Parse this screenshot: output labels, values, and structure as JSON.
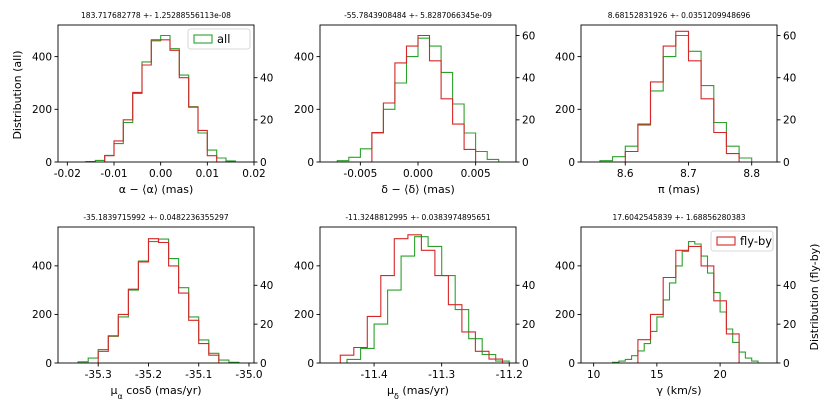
{
  "colors": {
    "all": "#2ca02c",
    "flyby": "#d62728",
    "axes": "#000000"
  },
  "ylabel_left": "Distribution (all)",
  "ylabel_right": "Distribution (fly-by)",
  "chart_data": [
    {
      "type": "histogram",
      "title": "183.717682778 +- 1.25288556113e-08",
      "xlabel": "α − ⟨α⟩ (mas)",
      "xlim": [
        -0.022,
        0.02
      ],
      "xticks": [
        "-0.02",
        "-0.01",
        "0.00",
        "0.01",
        "0.02"
      ],
      "xtick_values": [
        -0.02,
        -0.01,
        0.0,
        0.01,
        0.02
      ],
      "ylim_left": [
        0,
        520
      ],
      "yticks_left": [
        0,
        200,
        400
      ],
      "ylim_right": [
        0,
        65
      ],
      "yticks_right": [
        0,
        20,
        40
      ],
      "legend": {
        "label": "all",
        "position": "upper right",
        "series": "all"
      },
      "series": [
        {
          "name": "all",
          "axis": "left",
          "edges": [
            -0.016,
            -0.014,
            -0.012,
            -0.01,
            -0.008,
            -0.006,
            -0.004,
            -0.002,
            0.0,
            0.002,
            0.004,
            0.006,
            0.008,
            0.01,
            0.012,
            0.014,
            0.016
          ],
          "counts": [
            2,
            6,
            25,
            70,
            150,
            260,
            380,
            460,
            480,
            430,
            330,
            210,
            110,
            45,
            15,
            4
          ]
        },
        {
          "name": "fly-by",
          "axis": "right",
          "edges": [
            -0.012,
            -0.01,
            -0.008,
            -0.006,
            -0.004,
            -0.002,
            0.0,
            0.002,
            0.004,
            0.006,
            0.008,
            0.01,
            0.012
          ],
          "counts": [
            3,
            10,
            20,
            33,
            46,
            58,
            58,
            53,
            40,
            26,
            15,
            3
          ]
        }
      ]
    },
    {
      "type": "histogram",
      "title": "-55.7843908484 +- 5.8287066345e-09",
      "xlabel": "δ − ⟨δ⟩ (mas)",
      "xlim": [
        -0.0085,
        0.0085
      ],
      "xticks": [
        "-0.005",
        "0.000",
        "0.005"
      ],
      "xtick_values": [
        -0.005,
        0.0,
        0.005
      ],
      "ylim_left": [
        0,
        520
      ],
      "yticks_left": [
        0,
        200,
        400
      ],
      "ylim_right": [
        0,
        65
      ],
      "yticks_right": [
        0,
        20,
        40,
        60
      ],
      "legend": null,
      "series": [
        {
          "name": "all",
          "axis": "left",
          "edges": [
            -0.007,
            -0.006,
            -0.005,
            -0.004,
            -0.003,
            -0.002,
            -0.001,
            0.0,
            0.001,
            0.002,
            0.003,
            0.004,
            0.005,
            0.006,
            0.007
          ],
          "counts": [
            5,
            18,
            50,
            110,
            200,
            300,
            400,
            470,
            440,
            340,
            220,
            110,
            40,
            10
          ]
        },
        {
          "name": "fly-by",
          "axis": "right",
          "edges": [
            -0.004,
            -0.003,
            -0.002,
            -0.001,
            0.0,
            0.001,
            0.002,
            0.003,
            0.004,
            0.005
          ],
          "counts": [
            14,
            28,
            47,
            55,
            60,
            48,
            30,
            18,
            6
          ]
        }
      ]
    },
    {
      "type": "histogram",
      "title": "8.68152831926 +- 0.0351209948696",
      "xlabel": "π (mas)",
      "xlim": [
        8.53,
        8.84
      ],
      "xticks": [
        "8.6",
        "8.7",
        "8.8"
      ],
      "xtick_values": [
        8.6,
        8.7,
        8.8
      ],
      "ylim_left": [
        0,
        520
      ],
      "yticks_left": [
        0,
        200,
        400
      ],
      "ylim_right": [
        0,
        65
      ],
      "yticks_right": [
        0,
        20,
        40,
        60
      ],
      "legend": null,
      "series": [
        {
          "name": "all",
          "axis": "left",
          "edges": [
            8.56,
            8.58,
            8.6,
            8.62,
            8.64,
            8.66,
            8.68,
            8.7,
            8.72,
            8.74,
            8.76,
            8.78,
            8.8
          ],
          "counts": [
            5,
            20,
            60,
            140,
            270,
            400,
            480,
            420,
            290,
            150,
            60,
            15
          ]
        },
        {
          "name": "fly-by",
          "axis": "right",
          "edges": [
            8.6,
            8.62,
            8.64,
            8.66,
            8.68,
            8.7,
            8.72,
            8.74,
            8.76,
            8.78
          ],
          "counts": [
            5,
            18,
            38,
            55,
            62,
            48,
            30,
            14,
            4
          ]
        }
      ]
    },
    {
      "type": "histogram",
      "title": "-35.1839715992 +- 0.0482236355297",
      "xlabel": "μ_α cosδ (mas/yr)",
      "xlim": [
        -35.38,
        -34.99
      ],
      "xticks": [
        "-35.3",
        "-35.2",
        "-35.1",
        "-35.0"
      ],
      "xtick_values": [
        -35.3,
        -35.2,
        -35.1,
        -35.0
      ],
      "ylim_left": [
        0,
        560
      ],
      "yticks_left": [
        0,
        200,
        400
      ],
      "ylim_right": [
        0,
        70
      ],
      "yticks_right": [
        0,
        20,
        40
      ],
      "legend": null,
      "series": [
        {
          "name": "all",
          "axis": "left",
          "edges": [
            -35.34,
            -35.32,
            -35.3,
            -35.28,
            -35.26,
            -35.24,
            -35.22,
            -35.2,
            -35.18,
            -35.16,
            -35.14,
            -35.12,
            -35.1,
            -35.08,
            -35.06,
            -35.04,
            -35.02
          ],
          "counts": [
            5,
            20,
            55,
            110,
            190,
            300,
            420,
            500,
            510,
            430,
            310,
            190,
            95,
            40,
            12,
            3
          ]
        },
        {
          "name": "fly-by",
          "axis": "right",
          "edges": [
            -35.3,
            -35.28,
            -35.26,
            -35.24,
            -35.22,
            -35.2,
            -35.18,
            -35.16,
            -35.14,
            -35.12,
            -35.1,
            -35.08,
            -35.06
          ],
          "counts": [
            6,
            14,
            25,
            38,
            52,
            64,
            62,
            50,
            36,
            22,
            10,
            4
          ]
        }
      ]
    },
    {
      "type": "histogram",
      "title": "-11.3248812995 +- 0.0383974895651",
      "xlabel": "μ_δ (mas/yr)",
      "xlim": [
        -11.48,
        -11.19
      ],
      "xticks": [
        "-11.4",
        "-11.3",
        "-11.2"
      ],
      "xtick_values": [
        -11.4,
        -11.3,
        -11.2
      ],
      "ylim_left": [
        0,
        560
      ],
      "yticks_left": [
        0,
        200,
        400
      ],
      "ylim_right": [
        0,
        70
      ],
      "yticks_right": [
        0,
        20,
        40
      ],
      "legend": null,
      "series": [
        {
          "name": "all",
          "axis": "left",
          "edges": [
            -11.44,
            -11.42,
            -11.4,
            -11.38,
            -11.36,
            -11.34,
            -11.32,
            -11.3,
            -11.28,
            -11.26,
            -11.24,
            -11.22,
            -11.2
          ],
          "counts": [
            15,
            60,
            160,
            300,
            440,
            520,
            480,
            360,
            220,
            100,
            35,
            8
          ]
        },
        {
          "name": "fly-by",
          "axis": "right",
          "edges": [
            -11.45,
            -11.43,
            -11.41,
            -11.39,
            -11.37,
            -11.35,
            -11.33,
            -11.31,
            -11.29,
            -11.27,
            -11.25,
            -11.23,
            -11.21
          ],
          "counts": [
            4,
            8,
            24,
            45,
            64,
            66,
            58,
            45,
            30,
            16,
            6,
            2
          ]
        }
      ]
    },
    {
      "type": "histogram",
      "title": "17.6042545839 +- 1.68856280383",
      "xlabel": "γ (km/s)",
      "xlim": [
        9,
        24.5
      ],
      "xticks": [
        "10",
        "15",
        "20"
      ],
      "xtick_values": [
        10,
        15,
        20
      ],
      "ylim_left": [
        0,
        560
      ],
      "yticks_left": [
        0,
        200,
        400
      ],
      "ylim_right": [
        0,
        70
      ],
      "yticks_right": [
        0,
        20,
        40
      ],
      "legend": {
        "label": "fly-by",
        "position": "upper right",
        "series": "fly-by"
      },
      "series": [
        {
          "name": "all",
          "axis": "left",
          "edges": [
            11.5,
            12.0,
            12.5,
            13.0,
            13.5,
            14.0,
            14.5,
            15.0,
            15.5,
            16.0,
            16.5,
            17.0,
            17.5,
            18.0,
            18.5,
            19.0,
            19.5,
            20.0,
            20.5,
            21.0,
            21.5,
            22.0,
            22.5,
            23.0
          ],
          "counts": [
            3,
            8,
            15,
            30,
            50,
            80,
            130,
            190,
            260,
            330,
            400,
            460,
            500,
            490,
            440,
            370,
            290,
            210,
            140,
            85,
            45,
            20,
            8
          ]
        },
        {
          "name": "fly-by",
          "axis": "right",
          "edges": [
            13.5,
            14.5,
            15.5,
            16.5,
            17.5,
            18.5,
            19.5,
            20.5,
            21.5
          ],
          "counts": [
            12,
            25,
            44,
            58,
            60,
            50,
            32,
            15
          ]
        }
      ]
    }
  ]
}
